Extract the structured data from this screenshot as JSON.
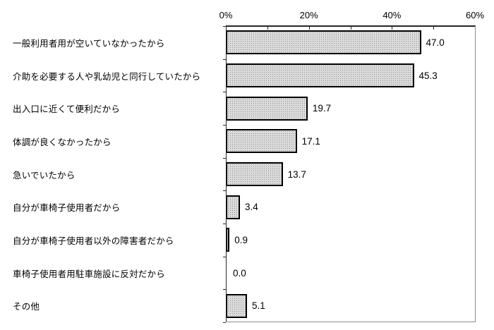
{
  "chart_data": {
    "type": "bar",
    "orientation": "horizontal",
    "title": "",
    "xlabel": "",
    "ylabel": "",
    "categories": [
      "一般利用者用が空いていなかったから",
      "介助を必要する人や乳幼児と同行していたから",
      "出入口に近くて便利だから",
      "体調が良くなかったから",
      "急いでいたから",
      "自分が車椅子使用者だから",
      "自分が車椅子使用者以外の障害者だから",
      "車椅子使用者用駐車施設に反対だから",
      "その他"
    ],
    "values": [
      47.0,
      45.3,
      19.7,
      17.1,
      13.7,
      3.4,
      0.9,
      0.0,
      5.1
    ],
    "value_labels": [
      "47.0",
      "45.3",
      "19.7",
      "17.1",
      "13.7",
      "3.4",
      "0.9",
      "0.0",
      "5.1"
    ],
    "xlim": [
      0,
      60
    ],
    "x_tick_values": [
      0,
      20,
      40,
      60
    ],
    "x_tick_labels": [
      "0%",
      "20%",
      "40%",
      "60%"
    ],
    "x_minor_tick_step": 10,
    "axis_position": "top",
    "grid": false,
    "legend": false,
    "bar_fill_style": "dotted-pattern",
    "colors": {
      "background": "#ffffff",
      "text": "#000000",
      "bar_border": "#000000",
      "bar_pattern_dot": "#8a8a8a",
      "bar_pattern_bg": "#ffffff",
      "axis_line": "#262626",
      "frame_line": "#8c8c8c"
    }
  }
}
